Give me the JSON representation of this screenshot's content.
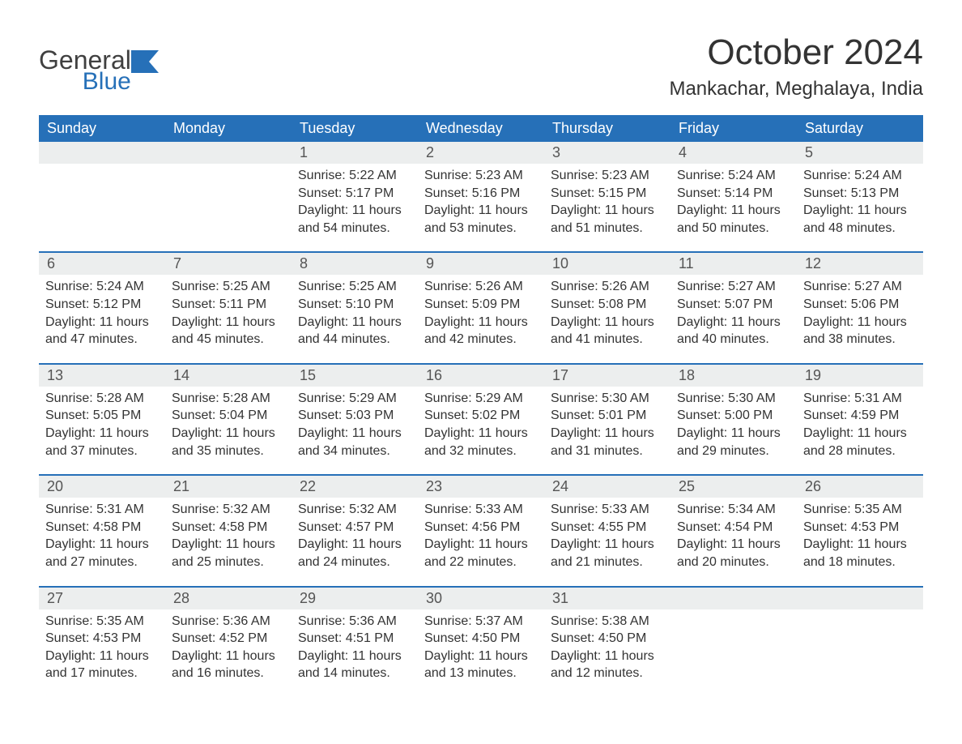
{
  "brand": {
    "general": "General",
    "blue": "Blue"
  },
  "title": "October 2024",
  "location": "Mankachar, Meghalaya, India",
  "colors": {
    "header_bg": "#2670b8",
    "header_text": "#ffffff",
    "daynum_bg": "#eceeee",
    "text": "#333333",
    "accent": "#2670b8"
  },
  "weekdays": [
    "Sunday",
    "Monday",
    "Tuesday",
    "Wednesday",
    "Thursday",
    "Friday",
    "Saturday"
  ],
  "weeks": [
    [
      null,
      null,
      {
        "n": "1",
        "sunrise": "5:22 AM",
        "sunset": "5:17 PM",
        "daylight": "11 hours and 54 minutes."
      },
      {
        "n": "2",
        "sunrise": "5:23 AM",
        "sunset": "5:16 PM",
        "daylight": "11 hours and 53 minutes."
      },
      {
        "n": "3",
        "sunrise": "5:23 AM",
        "sunset": "5:15 PM",
        "daylight": "11 hours and 51 minutes."
      },
      {
        "n": "4",
        "sunrise": "5:24 AM",
        "sunset": "5:14 PM",
        "daylight": "11 hours and 50 minutes."
      },
      {
        "n": "5",
        "sunrise": "5:24 AM",
        "sunset": "5:13 PM",
        "daylight": "11 hours and 48 minutes."
      }
    ],
    [
      {
        "n": "6",
        "sunrise": "5:24 AM",
        "sunset": "5:12 PM",
        "daylight": "11 hours and 47 minutes."
      },
      {
        "n": "7",
        "sunrise": "5:25 AM",
        "sunset": "5:11 PM",
        "daylight": "11 hours and 45 minutes."
      },
      {
        "n": "8",
        "sunrise": "5:25 AM",
        "sunset": "5:10 PM",
        "daylight": "11 hours and 44 minutes."
      },
      {
        "n": "9",
        "sunrise": "5:26 AM",
        "sunset": "5:09 PM",
        "daylight": "11 hours and 42 minutes."
      },
      {
        "n": "10",
        "sunrise": "5:26 AM",
        "sunset": "5:08 PM",
        "daylight": "11 hours and 41 minutes."
      },
      {
        "n": "11",
        "sunrise": "5:27 AM",
        "sunset": "5:07 PM",
        "daylight": "11 hours and 40 minutes."
      },
      {
        "n": "12",
        "sunrise": "5:27 AM",
        "sunset": "5:06 PM",
        "daylight": "11 hours and 38 minutes."
      }
    ],
    [
      {
        "n": "13",
        "sunrise": "5:28 AM",
        "sunset": "5:05 PM",
        "daylight": "11 hours and 37 minutes."
      },
      {
        "n": "14",
        "sunrise": "5:28 AM",
        "sunset": "5:04 PM",
        "daylight": "11 hours and 35 minutes."
      },
      {
        "n": "15",
        "sunrise": "5:29 AM",
        "sunset": "5:03 PM",
        "daylight": "11 hours and 34 minutes."
      },
      {
        "n": "16",
        "sunrise": "5:29 AM",
        "sunset": "5:02 PM",
        "daylight": "11 hours and 32 minutes."
      },
      {
        "n": "17",
        "sunrise": "5:30 AM",
        "sunset": "5:01 PM",
        "daylight": "11 hours and 31 minutes."
      },
      {
        "n": "18",
        "sunrise": "5:30 AM",
        "sunset": "5:00 PM",
        "daylight": "11 hours and 29 minutes."
      },
      {
        "n": "19",
        "sunrise": "5:31 AM",
        "sunset": "4:59 PM",
        "daylight": "11 hours and 28 minutes."
      }
    ],
    [
      {
        "n": "20",
        "sunrise": "5:31 AM",
        "sunset": "4:58 PM",
        "daylight": "11 hours and 27 minutes."
      },
      {
        "n": "21",
        "sunrise": "5:32 AM",
        "sunset": "4:58 PM",
        "daylight": "11 hours and 25 minutes."
      },
      {
        "n": "22",
        "sunrise": "5:32 AM",
        "sunset": "4:57 PM",
        "daylight": "11 hours and 24 minutes."
      },
      {
        "n": "23",
        "sunrise": "5:33 AM",
        "sunset": "4:56 PM",
        "daylight": "11 hours and 22 minutes."
      },
      {
        "n": "24",
        "sunrise": "5:33 AM",
        "sunset": "4:55 PM",
        "daylight": "11 hours and 21 minutes."
      },
      {
        "n": "25",
        "sunrise": "5:34 AM",
        "sunset": "4:54 PM",
        "daylight": "11 hours and 20 minutes."
      },
      {
        "n": "26",
        "sunrise": "5:35 AM",
        "sunset": "4:53 PM",
        "daylight": "11 hours and 18 minutes."
      }
    ],
    [
      {
        "n": "27",
        "sunrise": "5:35 AM",
        "sunset": "4:53 PM",
        "daylight": "11 hours and 17 minutes."
      },
      {
        "n": "28",
        "sunrise": "5:36 AM",
        "sunset": "4:52 PM",
        "daylight": "11 hours and 16 minutes."
      },
      {
        "n": "29",
        "sunrise": "5:36 AM",
        "sunset": "4:51 PM",
        "daylight": "11 hours and 14 minutes."
      },
      {
        "n": "30",
        "sunrise": "5:37 AM",
        "sunset": "4:50 PM",
        "daylight": "11 hours and 13 minutes."
      },
      {
        "n": "31",
        "sunrise": "5:38 AM",
        "sunset": "4:50 PM",
        "daylight": "11 hours and 12 minutes."
      },
      null,
      null
    ]
  ],
  "labels": {
    "sunrise": "Sunrise: ",
    "sunset": "Sunset: ",
    "daylight": "Daylight: "
  }
}
